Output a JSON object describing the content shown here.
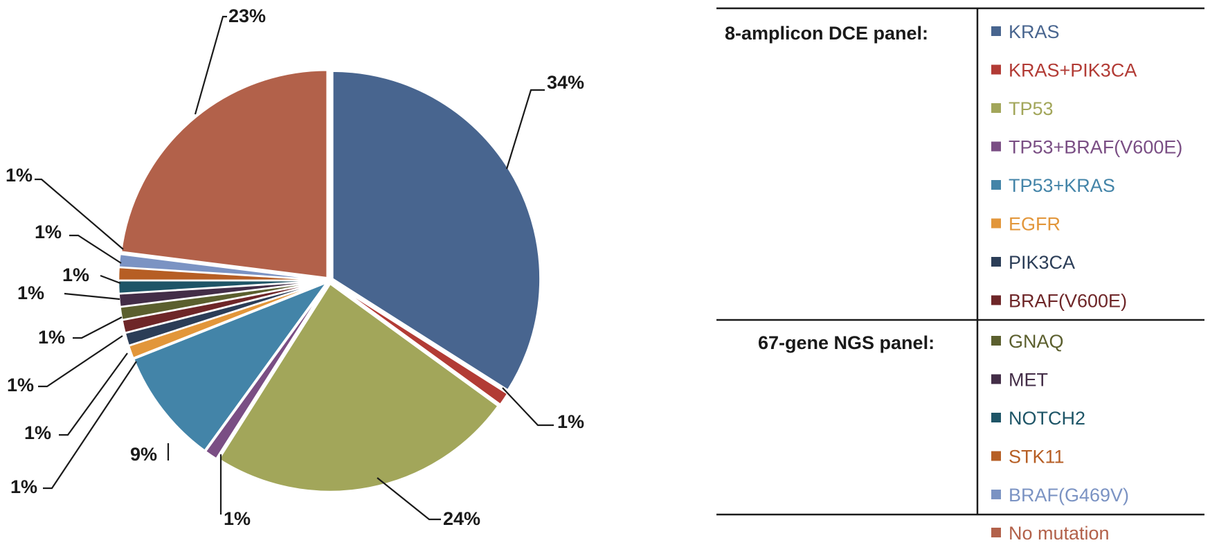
{
  "chart_data": {
    "type": "pie",
    "slices": [
      {
        "name": "KRAS",
        "value": 34,
        "label": "34%",
        "color": "#48658F"
      },
      {
        "name": "KRAS+PIK3CA",
        "value": 1,
        "label": "1%",
        "color": "#B23B35"
      },
      {
        "name": "TP53",
        "value": 24,
        "label": "24%",
        "color": "#A2A65A"
      },
      {
        "name": "TP53+BRAF(V600E)",
        "value": 1,
        "label": "1%",
        "color": "#7A4E84"
      },
      {
        "name": "TP53+KRAS",
        "value": 9,
        "label": "9%",
        "color": "#4384A8"
      },
      {
        "name": "EGFR",
        "value": 1,
        "label": "1%",
        "color": "#E2963A"
      },
      {
        "name": "PIK3CA",
        "value": 1,
        "label": "1%",
        "color": "#2B3D57"
      },
      {
        "name": "BRAF(V600E)",
        "value": 1,
        "label": "1%",
        "color": "#6E2628"
      },
      {
        "name": "GNAQ",
        "value": 1,
        "label": "1%",
        "color": "#5B5F2E"
      },
      {
        "name": "MET",
        "value": 1,
        "label": "1%",
        "color": "#432D47"
      },
      {
        "name": "NOTCH2",
        "value": 1,
        "label": "1%",
        "color": "#1E5567"
      },
      {
        "name": "STK11",
        "value": 1,
        "label": "1%",
        "color": "#B65E24"
      },
      {
        "name": "BRAF(G469V)",
        "value": 1,
        "label": "1%",
        "color": "#7B93C3"
      },
      {
        "name": "No mutation",
        "value": 23,
        "label": "23%",
        "color": "#B2614A"
      }
    ],
    "legend": {
      "placement": "right",
      "groups": [
        {
          "title": "8-amplicon DCE panel:",
          "items": [
            "KRAS",
            "KRAS+PIK3CA",
            "TP53",
            "TP53+BRAF(V600E)",
            "TP53+KRAS",
            "EGFR",
            "PIK3CA",
            "BRAF(V600E)"
          ]
        },
        {
          "title": "67-gene NGS panel:",
          "items": [
            "GNAQ",
            "MET",
            "NOTCH2",
            "STK11",
            "BRAF(G469V)"
          ]
        },
        {
          "title": "",
          "items": [
            "No mutation"
          ]
        }
      ]
    }
  }
}
